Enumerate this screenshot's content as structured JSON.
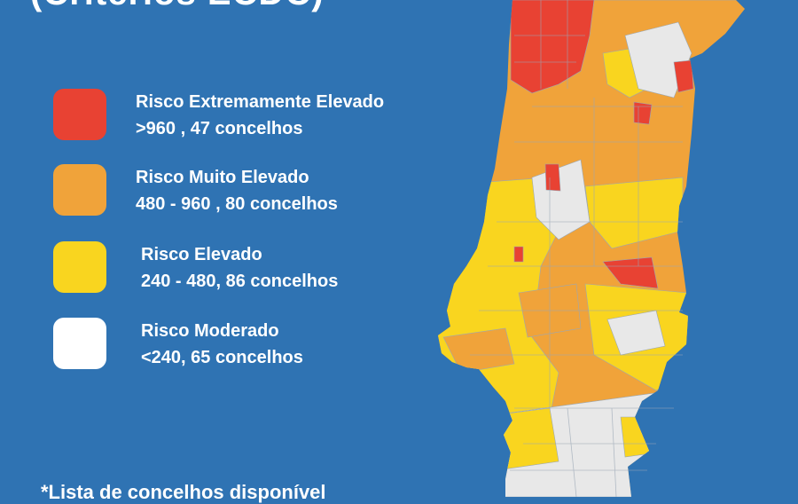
{
  "header": {
    "title": "(Critérios ECDC)"
  },
  "legend": {
    "items": [
      {
        "title": "Risco Extremamente Elevado",
        "detail": ">960 , 47 concelhos",
        "color": "#e84233"
      },
      {
        "title": "Risco Muito Elevado",
        "detail": "480 - 960 , 80 concelhos",
        "color": "#f0a33a"
      },
      {
        "title": "Risco Elevado",
        "detail": "240 - 480, 86 concelhos",
        "color": "#f9d51f"
      },
      {
        "title": "Risco Moderado",
        "detail": "<240, 65 concelhos",
        "color": "#ffffff"
      }
    ]
  },
  "footnote": {
    "text": "*Lista de concelhos disponível"
  },
  "map": {
    "colors": {
      "extreme": "#e84233",
      "very_high": "#f0a33a",
      "high": "#f9d51f",
      "moderate": "#e8e8e8",
      "border": "#9aa7b5"
    }
  }
}
